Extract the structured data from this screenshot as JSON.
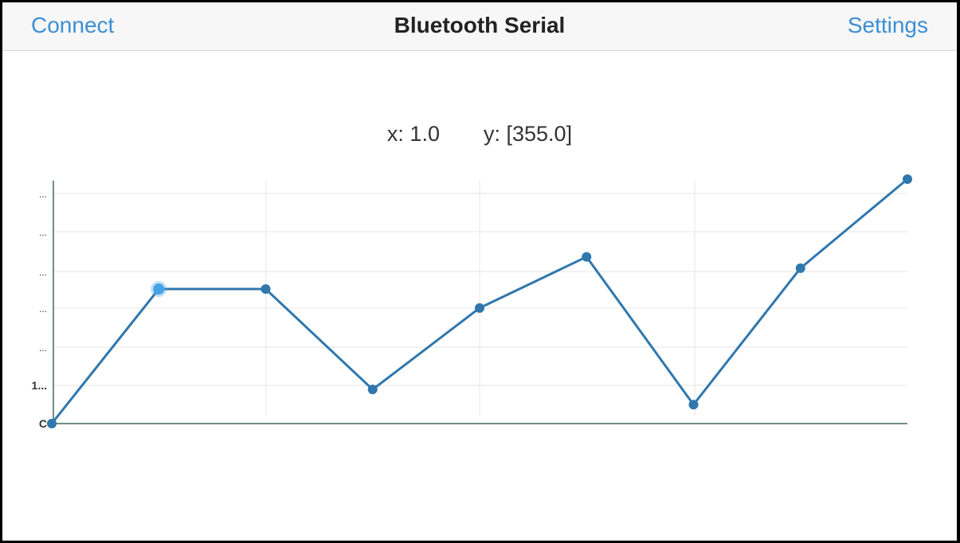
{
  "navbar": {
    "connect_label": "Connect",
    "title": "Bluetooth Serial",
    "settings_label": "Settings"
  },
  "readout": {
    "x_text": "x: 1.0",
    "y_text": "y: [355.0]"
  },
  "colors": {
    "accent": "#3b8fd6",
    "line": "#2f77ad",
    "selected_point": "#48a3e6",
    "grid": "#e6e6e6",
    "axis": "#6f8f83"
  },
  "chart_data": {
    "type": "line",
    "x": [
      0,
      1,
      2,
      3,
      4,
      5,
      6,
      7,
      8
    ],
    "series": [
      {
        "values": [
          0,
          355,
          355,
          90,
          305,
          440,
          50,
          410,
          645
        ]
      }
    ],
    "selected_index": 1,
    "ylim": [
      0,
      645
    ],
    "y_tick_labels": [
      "C",
      "1...",
      "...",
      "...",
      "...",
      "...",
      "..."
    ],
    "grid": true
  }
}
